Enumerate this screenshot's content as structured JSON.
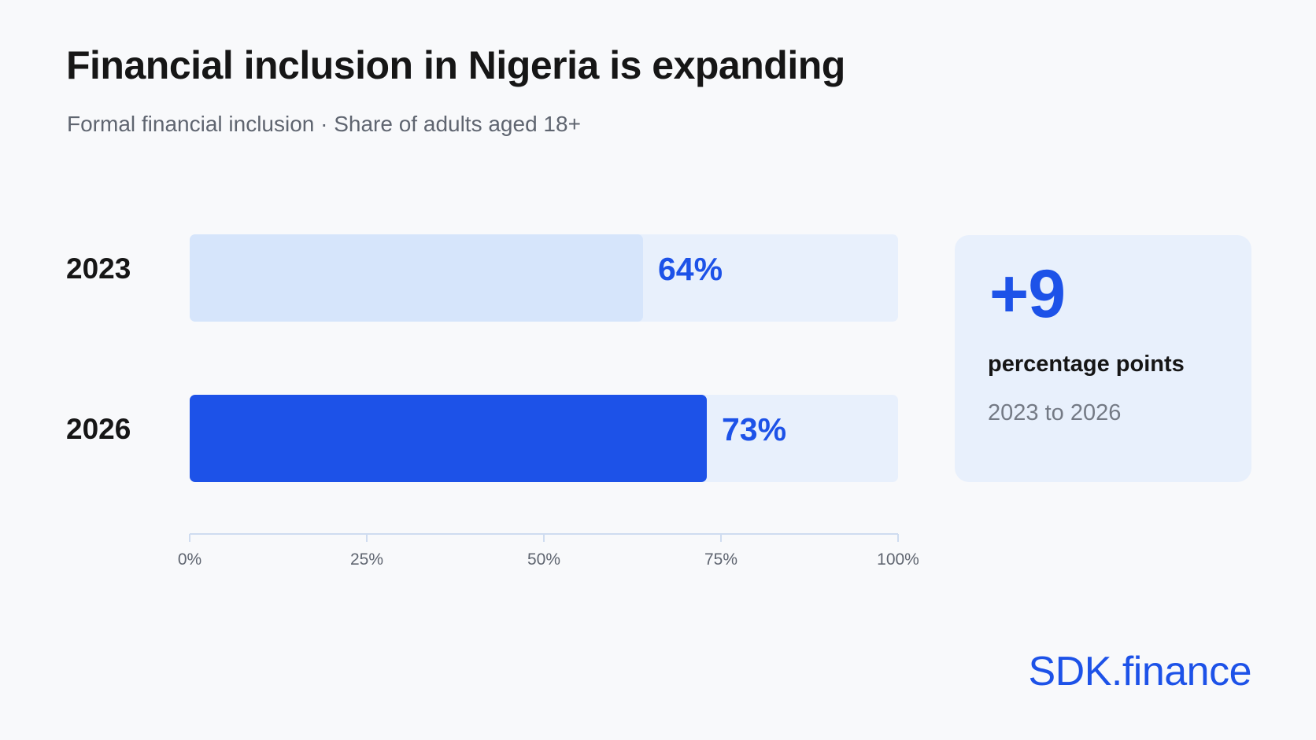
{
  "header": {
    "title": "Financial inclusion in Nigeria is expanding",
    "subtitle": "Formal financial inclusion · Share of adults aged 18+"
  },
  "chart_data": {
    "type": "bar",
    "orientation": "horizontal",
    "categories": [
      "2023",
      "2026"
    ],
    "values": [
      64,
      73
    ],
    "value_labels": [
      "64%",
      "73%"
    ],
    "xlim": [
      0,
      100
    ],
    "x_ticks": [
      0,
      25,
      50,
      75,
      100
    ],
    "x_tick_labels": [
      "0%",
      "25%",
      "50%",
      "75%",
      "100%"
    ],
    "grid": false,
    "colors": {
      "bar_2023": "#d6e5fb",
      "bar_2026": "#1d52e8",
      "track": "#e8f0fc",
      "value_label": "#1d52e8",
      "axis": "#cfdcf0",
      "tick_label": "#5f6570"
    }
  },
  "kpi": {
    "value": "+9",
    "label": "percentage points",
    "period": "2023 to 2026"
  },
  "brand": {
    "name": "SDK.finance",
    "color": "#1d52e8"
  }
}
